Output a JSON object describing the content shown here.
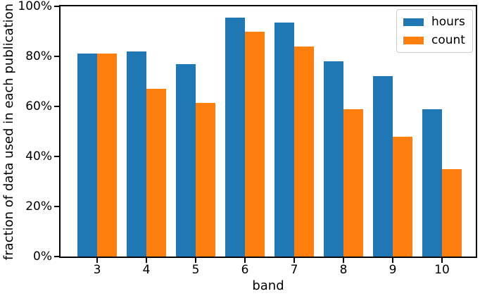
{
  "chart_data": {
    "type": "bar",
    "title": "",
    "xlabel": "band",
    "ylabel": "fraction of data used in each publication",
    "categories": [
      "3",
      "4",
      "5",
      "6",
      "7",
      "8",
      "9",
      "10"
    ],
    "series": [
      {
        "name": "hours",
        "color": "#1f77b4",
        "values": [
          81,
          82,
          77,
          95.5,
          93.5,
          78,
          72,
          59
        ]
      },
      {
        "name": "count",
        "color": "#ff7f0e",
        "values": [
          81,
          67,
          61.5,
          90,
          84,
          59,
          48,
          35
        ]
      }
    ],
    "ylim": [
      0,
      100
    ],
    "yticks": [
      {
        "value": 0,
        "label": "0%"
      },
      {
        "value": 20,
        "label": "20%"
      },
      {
        "value": 40,
        "label": "40%"
      },
      {
        "value": 60,
        "label": "60%"
      },
      {
        "value": 80,
        "label": "80%"
      },
      {
        "value": 100,
        "label": "100%"
      }
    ],
    "grid": false,
    "legend": {
      "position": "upper right",
      "entries": [
        "hours",
        "count"
      ]
    }
  }
}
